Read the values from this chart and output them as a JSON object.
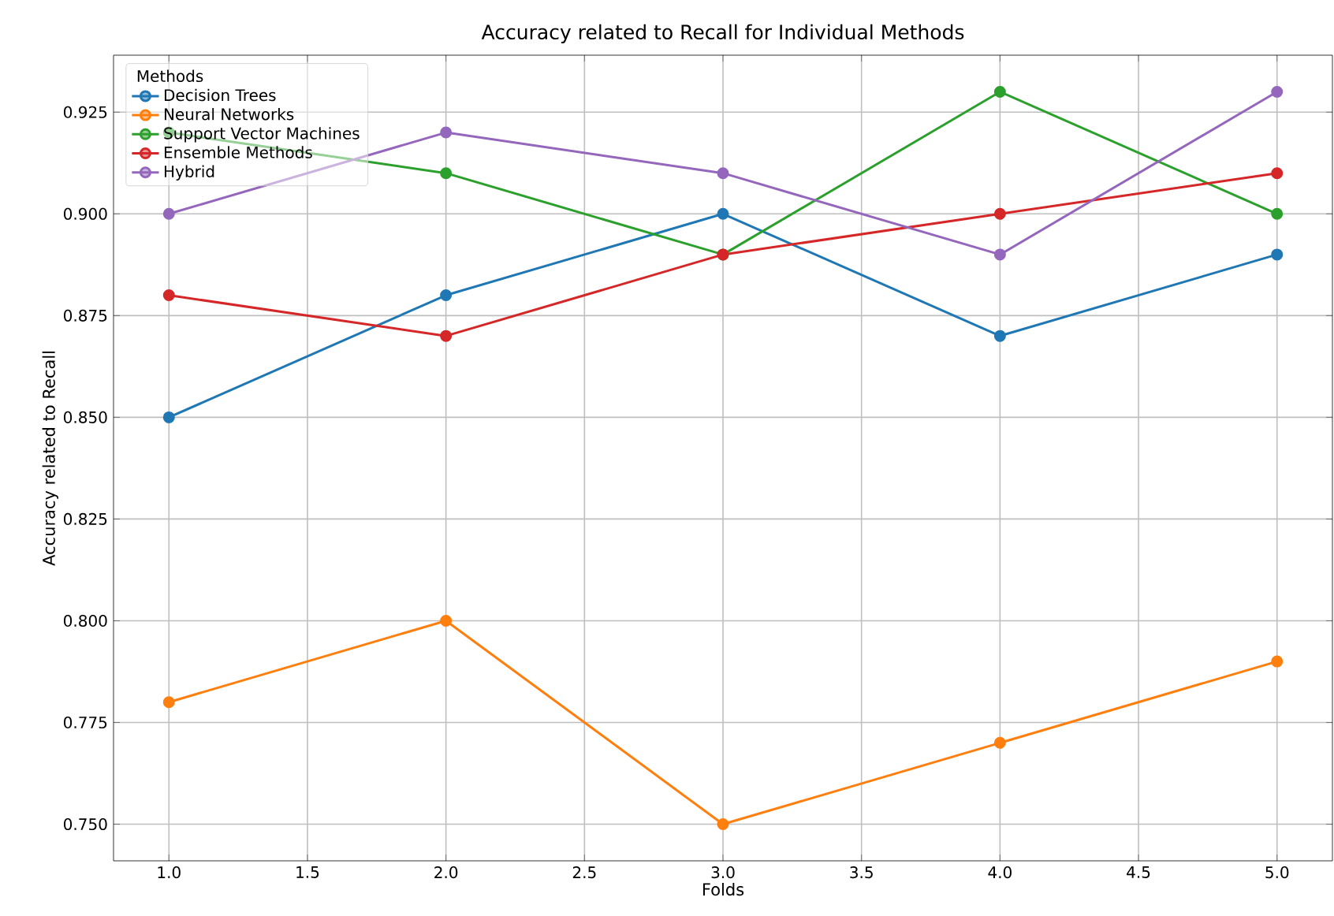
{
  "chart_data": {
    "type": "line",
    "title": "Accuracy related to Recall for Individual Methods",
    "xlabel": "Folds",
    "ylabel": "Accuracy related to Recall",
    "legend_title": "Methods",
    "x": [
      1,
      2,
      3,
      4,
      5
    ],
    "series": [
      {
        "name": "Decision Trees",
        "color": "#1f77b4",
        "values": [
          0.85,
          0.88,
          0.9,
          0.87,
          0.89
        ]
      },
      {
        "name": "Neural Networks",
        "color": "#ff7f0e",
        "values": [
          0.78,
          0.8,
          0.75,
          0.77,
          0.79
        ]
      },
      {
        "name": "Support Vector Machines",
        "color": "#2ca02c",
        "values": [
          0.92,
          0.91,
          0.89,
          0.93,
          0.9
        ]
      },
      {
        "name": "Ensemble Methods",
        "color": "#d62728",
        "values": [
          0.88,
          0.87,
          0.89,
          0.9,
          0.91
        ]
      },
      {
        "name": "Hybrid",
        "color": "#9467bd",
        "values": [
          0.9,
          0.92,
          0.91,
          0.89,
          0.93
        ]
      }
    ],
    "xlim": [
      0.8,
      5.2
    ],
    "ylim": [
      0.741,
      0.939
    ],
    "xticks": [
      {
        "value": 1,
        "label": "1.0"
      },
      {
        "value": 1.5,
        "label": "1.5"
      },
      {
        "value": 2,
        "label": "2.0"
      },
      {
        "value": 2.5,
        "label": "2.5"
      },
      {
        "value": 3,
        "label": "3.0"
      },
      {
        "value": 3.5,
        "label": "3.5"
      },
      {
        "value": 4,
        "label": "4.0"
      },
      {
        "value": 4.5,
        "label": "4.5"
      },
      {
        "value": 5,
        "label": "5.0"
      }
    ],
    "yticks": [
      {
        "value": 0.75,
        "label": "0.750"
      },
      {
        "value": 0.775,
        "label": "0.775"
      },
      {
        "value": 0.8,
        "label": "0.800"
      },
      {
        "value": 0.825,
        "label": "0.825"
      },
      {
        "value": 0.85,
        "label": "0.850"
      },
      {
        "value": 0.875,
        "label": "0.875"
      },
      {
        "value": 0.9,
        "label": "0.900"
      },
      {
        "value": 0.925,
        "label": "0.925"
      }
    ],
    "grid": true,
    "legend": "top left",
    "marker": "circle",
    "line_style": "solid"
  }
}
